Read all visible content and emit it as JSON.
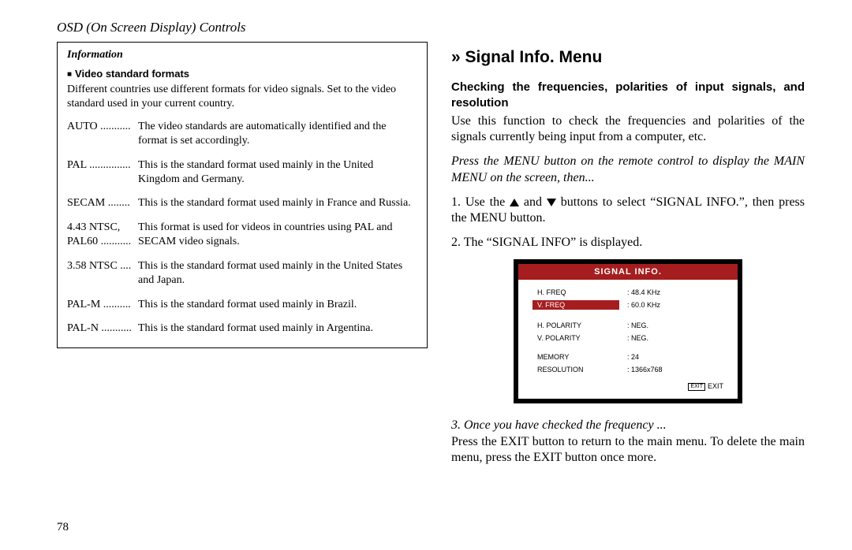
{
  "header": "OSD (On Screen Display) Controls",
  "page_number": "78",
  "left": {
    "box_title": "Information",
    "section_title": "Video standard formats",
    "intro": "Different countries use different formats for video signals. Set to the video standard used in your current country.",
    "formats": [
      {
        "label": "AUTO ...........",
        "desc": "The video standards are automatically identified and the format is set accordingly."
      },
      {
        "label": "PAL ...............",
        "desc": "This is the standard format used mainly in the United Kingdom and Germany."
      },
      {
        "label": "SECAM ........",
        "desc": "This is the standard format used mainly in France and Russia."
      },
      {
        "label": "4.43 NTSC,\nPAL60 ...........",
        "desc": "This format is used for videos in countries using PAL and SECAM video signals."
      },
      {
        "label": "3.58 NTSC ....",
        "desc": "This is the standard format used mainly in the United States and Japan."
      },
      {
        "label": "PAL-M ..........",
        "desc": "This is the standard format used mainly in Brazil."
      },
      {
        "label": "PAL-N ...........",
        "desc": "This is the standard format used mainly in Argentina."
      }
    ]
  },
  "right": {
    "title": "» Signal Info. Menu",
    "subtitle": "Checking the frequencies, polarities of input signals, and resolution",
    "body1": "Use this function to check the frequencies and polarities of the signals currently being input from a computer, etc.",
    "italic1": "Press the MENU button on the remote control to display the MAIN MENU on the screen, then...",
    "step1_pre": "1. Use the ",
    "step1_mid": " and ",
    "step1_post": " buttons to select “SIGNAL INFO.”, then press the MENU button.",
    "step2": "2. The “SIGNAL INFO” is displayed.",
    "signal_box": {
      "header": "SIGNAL INFO.",
      "rows": [
        {
          "label": "H. FREQ",
          "value": ": 48.4 KHz",
          "highlight": false
        },
        {
          "label": "V. FREQ",
          "value": ": 60.0 KHz",
          "highlight": true
        },
        {
          "label": "H. POLARITY",
          "value": ": NEG.",
          "highlight": false,
          "gap_before": true
        },
        {
          "label": "V. POLARITY",
          "value": ": NEG.",
          "highlight": false
        },
        {
          "label": "MEMORY",
          "value": ": 24",
          "highlight": false,
          "gap_before": true
        },
        {
          "label": "RESOLUTION",
          "value": ": 1366x768",
          "highlight": false
        }
      ],
      "exit_label": "EXIT",
      "exit_button": "EXIT"
    },
    "step3_lead": "3. Once you have checked the frequency ...",
    "step3_body": "Press the EXIT button to return to the main menu. To delete the main menu, press the EXIT button once more."
  },
  "colors": {
    "accent": "#a51d1f",
    "text": "#000000",
    "bg": "#ffffff"
  }
}
